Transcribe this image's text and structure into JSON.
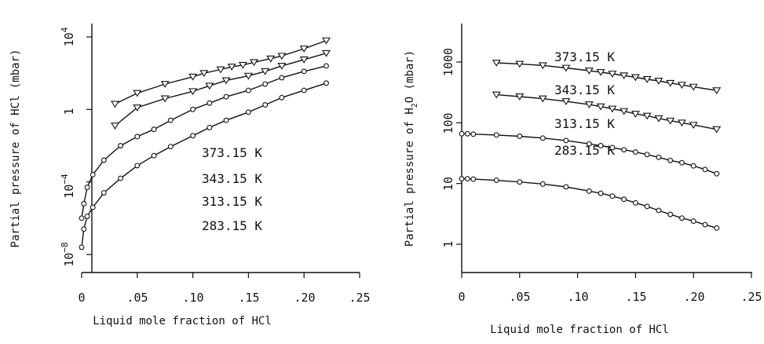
{
  "chart_data": [
    {
      "type": "line",
      "xlabel": "Liquid mole fraction of HCl",
      "ylabel": "Partial pressure of HCl (mbar)",
      "yscale": "log",
      "xlim": [
        0,
        0.25
      ],
      "ylim_log10": [
        -9,
        5
      ],
      "x_ticks": [
        {
          "value": 0,
          "label": "0"
        },
        {
          "value": 0.05,
          "label": ".05"
        },
        {
          "value": 0.1,
          "label": ".10"
        },
        {
          "value": 0.15,
          "label": ".15"
        },
        {
          "value": 0.2,
          "label": ".20"
        },
        {
          "value": 0.25,
          "label": ".25"
        }
      ],
      "y_ticks": [
        {
          "exp": 4,
          "base": "10",
          "sup": "4"
        },
        {
          "exp": 0,
          "base": "1",
          "sup": ""
        },
        {
          "exp": -4,
          "base": "10",
          "sup": "−4"
        },
        {
          "exp": -8,
          "base": "10",
          "sup": "−8"
        }
      ],
      "labels": [
        "373.15 K",
        "343.15 K",
        "313.15 K",
        "283.15 K"
      ],
      "series": [
        {
          "marker": "triangle",
          "x": [
            0.03,
            0.05,
            0.075,
            0.1,
            0.11,
            0.125,
            0.135,
            0.145,
            0.155,
            0.17,
            0.18,
            0.2,
            0.22
          ],
          "log10y": [
            0.3,
            0.9,
            1.4,
            1.8,
            2.0,
            2.2,
            2.35,
            2.45,
            2.6,
            2.8,
            2.95,
            3.35,
            3.8
          ]
        },
        {
          "marker": "triangle",
          "x": [
            0.03,
            0.05,
            0.075,
            0.1,
            0.115,
            0.13,
            0.15,
            0.165,
            0.18,
            0.2,
            0.22
          ],
          "log10y": [
            -0.9,
            0.1,
            0.6,
            1.0,
            1.3,
            1.6,
            1.85,
            2.1,
            2.4,
            2.75,
            3.1
          ]
        },
        {
          "marker": "circle",
          "x": [
            0.0,
            0.002,
            0.005,
            0.01,
            0.02,
            0.035,
            0.05,
            0.065,
            0.08,
            0.1,
            0.115,
            0.13,
            0.15,
            0.165,
            0.18,
            0.2,
            0.22
          ],
          "log10y": [
            -6.0,
            -5.2,
            -4.3,
            -3.6,
            -2.8,
            -2.0,
            -1.5,
            -1.1,
            -0.6,
            0.0,
            0.35,
            0.7,
            1.05,
            1.4,
            1.75,
            2.1,
            2.4
          ]
        },
        {
          "marker": "circle",
          "x": [
            0.0,
            0.002,
            0.005,
            0.01,
            0.02,
            0.035,
            0.05,
            0.065,
            0.08,
            0.1,
            0.115,
            0.13,
            0.15,
            0.165,
            0.18,
            0.2,
            0.22
          ],
          "log10y": [
            -7.6,
            -6.6,
            -5.9,
            -5.4,
            -4.6,
            -3.8,
            -3.1,
            -2.55,
            -2.05,
            -1.45,
            -1.0,
            -0.6,
            -0.15,
            0.25,
            0.65,
            1.05,
            1.45
          ]
        }
      ]
    },
    {
      "type": "line",
      "xlabel": "Liquid mole fraction of HCl",
      "ylabel_main": "Partial pressure of H",
      "ylabel_sub": "2",
      "ylabel_tail": "O (mbar)",
      "yscale": "log",
      "xlim": [
        0,
        0.25
      ],
      "ylim_log10": [
        -0.5,
        3.45
      ],
      "x_ticks": [
        {
          "value": 0,
          "label": "0"
        },
        {
          "value": 0.05,
          "label": ".05"
        },
        {
          "value": 0.1,
          "label": ".10"
        },
        {
          "value": 0.15,
          "label": ".15"
        },
        {
          "value": 0.2,
          "label": ".20"
        },
        {
          "value": 0.25,
          "label": ".25"
        }
      ],
      "y_ticks": [
        {
          "value": 1000,
          "label": "1000"
        },
        {
          "value": 100,
          "label": "100"
        },
        {
          "value": 10,
          "label": "10"
        },
        {
          "value": 1,
          "label": "1"
        }
      ],
      "labels": [
        "373.15 K",
        "343.15 K",
        "313.15 K",
        "283.15 K"
      ],
      "series": [
        {
          "marker": "triangle",
          "x": [
            0.03,
            0.05,
            0.07,
            0.09,
            0.11,
            0.12,
            0.13,
            0.14,
            0.15,
            0.16,
            0.17,
            0.18,
            0.19,
            0.2,
            0.22
          ],
          "y": [
            970,
            930,
            880,
            800,
            720,
            680,
            640,
            600,
            560,
            520,
            490,
            450,
            420,
            390,
            340
          ]
        },
        {
          "marker": "triangle",
          "x": [
            0.03,
            0.05,
            0.07,
            0.09,
            0.11,
            0.12,
            0.13,
            0.14,
            0.15,
            0.16,
            0.17,
            0.18,
            0.19,
            0.2,
            0.22
          ],
          "y": [
            290,
            270,
            250,
            225,
            200,
            185,
            170,
            155,
            140,
            130,
            118,
            108,
            100,
            92,
            78
          ]
        },
        {
          "marker": "circle",
          "x": [
            0.0,
            0.005,
            0.01,
            0.03,
            0.05,
            0.07,
            0.09,
            0.11,
            0.12,
            0.13,
            0.14,
            0.15,
            0.16,
            0.17,
            0.18,
            0.19,
            0.2,
            0.21,
            0.22
          ],
          "y": [
            66,
            66,
            65,
            63,
            60,
            56,
            51,
            45,
            42,
            39,
            36,
            33,
            30,
            27,
            24,
            22,
            19.5,
            17,
            14.5
          ]
        },
        {
          "marker": "circle",
          "x": [
            0.0,
            0.005,
            0.01,
            0.03,
            0.05,
            0.07,
            0.09,
            0.11,
            0.12,
            0.13,
            0.14,
            0.15,
            0.16,
            0.17,
            0.18,
            0.19,
            0.2,
            0.21,
            0.22
          ],
          "y": [
            12,
            12,
            11.8,
            11.3,
            10.6,
            9.8,
            8.8,
            7.5,
            6.9,
            6.2,
            5.5,
            4.8,
            4.2,
            3.6,
            3.1,
            2.7,
            2.4,
            2.1,
            1.85
          ]
        }
      ]
    }
  ]
}
